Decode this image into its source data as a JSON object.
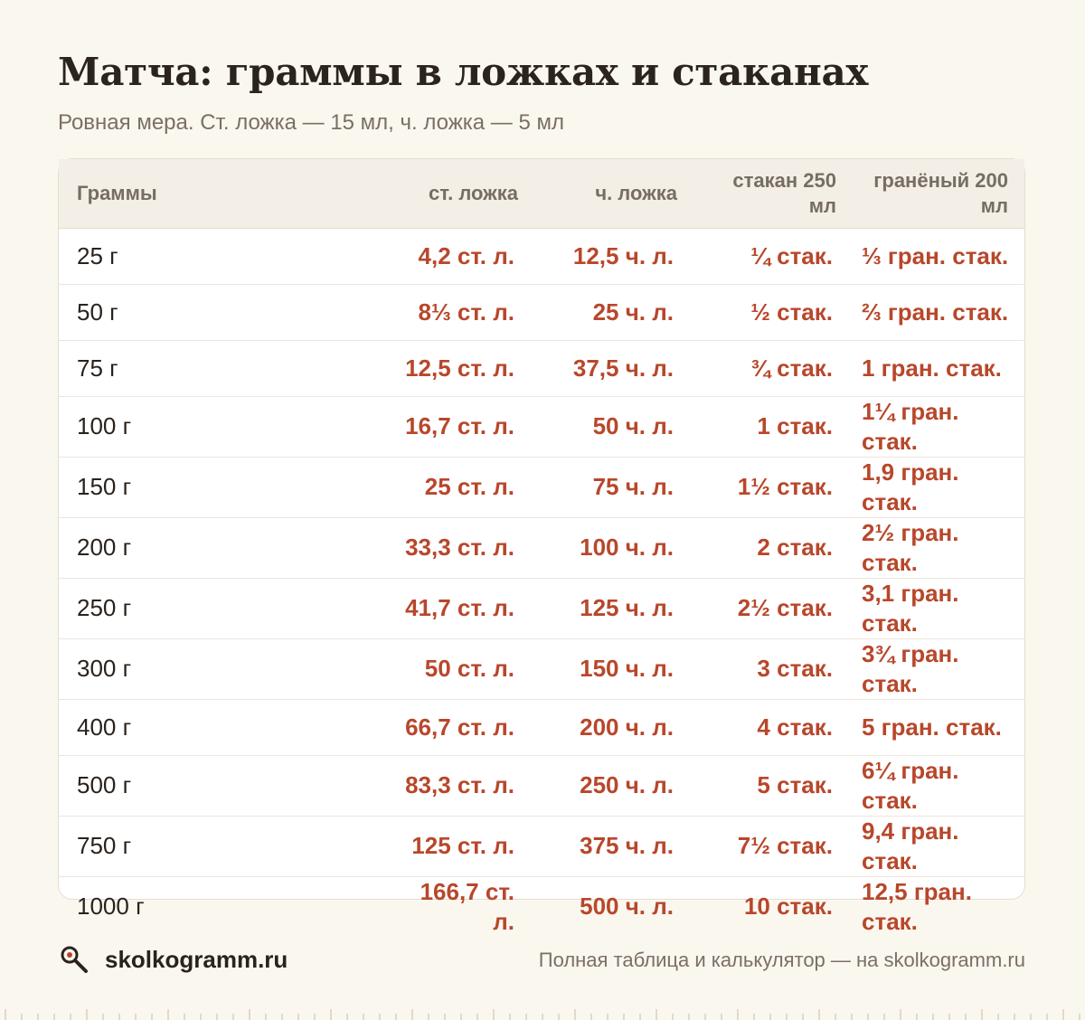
{
  "header": {
    "title": "Матча: граммы в ложках и стаканах",
    "subtitle": "Ровная мера. Ст. ложка — 15 мл, ч. ложка — 5 мл"
  },
  "table": {
    "columns": [
      "Граммы",
      "ст. ложка",
      "ч. ложка",
      "стакан 250 мл",
      "гранёный 200 мл"
    ],
    "rows": [
      [
        "25 г",
        "4,2 ст. л.",
        "12,5 ч. л.",
        "¼ стак.",
        "⅓ гран. стак."
      ],
      [
        "50 г",
        "8⅓ ст. л.",
        "25 ч. л.",
        "½ стак.",
        "⅔ гран. стак."
      ],
      [
        "75 г",
        "12,5 ст. л.",
        "37,5 ч. л.",
        "¾ стак.",
        "1 гран. стак."
      ],
      [
        "100 г",
        "16,7 ст. л.",
        "50 ч. л.",
        "1 стак.",
        "1¼ гран. стак."
      ],
      [
        "150 г",
        "25 ст. л.",
        "75 ч. л.",
        "1½ стак.",
        "1,9 гран. стак."
      ],
      [
        "200 г",
        "33,3 ст. л.",
        "100 ч. л.",
        "2 стак.",
        "2½ гран. стак."
      ],
      [
        "250 г",
        "41,7 ст. л.",
        "125 ч. л.",
        "2½ стак.",
        "3,1 гран. стак."
      ],
      [
        "300 г",
        "50 ст. л.",
        "150 ч. л.",
        "3 стак.",
        "3¾ гран. стак."
      ],
      [
        "400 г",
        "66,7 ст. л.",
        "200 ч. л.",
        "4 стак.",
        "5 гран. стак."
      ],
      [
        "500 г",
        "83,3 ст. л.",
        "250 ч. л.",
        "5 стак.",
        "6¼ гран. стак."
      ],
      [
        "750 г",
        "125 ст. л.",
        "375 ч. л.",
        "7½ стак.",
        "9,4 гран. стак."
      ],
      [
        "1000 г",
        "166,7 ст. л.",
        "500 ч. л.",
        "10 стак.",
        "12,5 гран. стак."
      ]
    ]
  },
  "footer": {
    "brand_icon": "magnifier-icon",
    "brand": "skolkogramm.ru",
    "note": "Полная таблица и калькулятор — на skolkogramm.ru"
  },
  "colors": {
    "background": "#faf7ef",
    "accent": "#b8472b",
    "header_bg": "#f3efe6",
    "muted_text": "#7a6f66"
  }
}
